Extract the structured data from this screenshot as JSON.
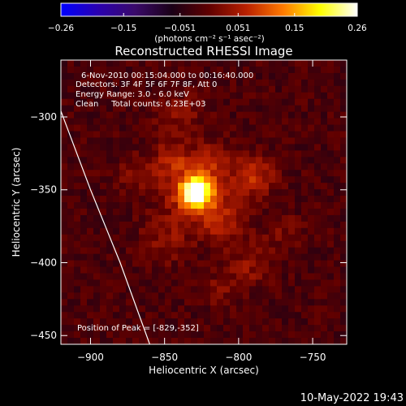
{
  "chart_data": {
    "type": "heatmap",
    "title": "Reconstructed RHESSI Image",
    "xlabel": "Heliocentric X (arcsec)",
    "ylabel": "Heliocentric Y (arcsec)",
    "xlim": [
      -920,
      -727
    ],
    "ylim": [
      -456,
      -261
    ],
    "x_ticks": [
      -900,
      -850,
      -800,
      -750
    ],
    "x_tick_labels": [
      "−900",
      "−850",
      "−800",
      "−750"
    ],
    "y_ticks": [
      -300,
      -350,
      -400,
      -450
    ],
    "y_tick_labels": [
      "−300",
      "−350",
      "−400",
      "−450"
    ],
    "colorbar": {
      "range": [
        -0.26,
        0.26
      ],
      "ticks": [
        -0.26,
        -0.15,
        -0.051,
        0.051,
        0.15,
        0.26
      ],
      "tick_labels": [
        "−0.26",
        "−0.15",
        "−0.051",
        "0.051",
        "0.15",
        "0.26"
      ],
      "label": "(photons cm⁻² s⁻¹ asec⁻²)"
    },
    "info_lines": [
      "6-Nov-2010 00:15:04.000 to 00:16:40.000",
      "Detectors: 3F 4F 5F 6F 7F 8F, Att 0",
      "Energy Range: 3.0 - 6.0 keV",
      "Clean     Total counts: 6.23E+03"
    ],
    "peak_label": "Position of Peak = [-829,-352]",
    "peak": {
      "x": -829,
      "y": -352,
      "value": 0.26
    },
    "sources": [
      {
        "x": -829,
        "y": -352,
        "amp": 0.26,
        "sigma": 7
      },
      {
        "x": -829,
        "y": -352,
        "amp": 0.09,
        "sigma": 16
      },
      {
        "x": -845,
        "y": -330,
        "amp": 0.06,
        "sigma": 9
      },
      {
        "x": -818,
        "y": -330,
        "amp": 0.055,
        "sigma": 9
      },
      {
        "x": -790,
        "y": -340,
        "amp": 0.085,
        "sigma": 10
      },
      {
        "x": -810,
        "y": -372,
        "amp": 0.06,
        "sigma": 11
      },
      {
        "x": -850,
        "y": -385,
        "amp": 0.045,
        "sigma": 11
      },
      {
        "x": -792,
        "y": -402,
        "amp": 0.05,
        "sigma": 10
      },
      {
        "x": -770,
        "y": -380,
        "amp": 0.035,
        "sigma": 9
      },
      {
        "x": -840,
        "y": -300,
        "amp": 0.04,
        "sigma": 12
      },
      {
        "x": -870,
        "y": -340,
        "amp": 0.035,
        "sigma": 10
      },
      {
        "x": -812,
        "y": -418,
        "amp": 0.035,
        "sigma": 9
      }
    ],
    "limb_curve": [
      [
        -920,
        -296
      ],
      [
        -900,
        -350
      ],
      [
        -880,
        -400
      ],
      [
        -860,
        -456
      ]
    ],
    "limb_color": "#ffffff",
    "background_level": 0.0,
    "colormap": [
      "#0000ff",
      "#2a00b0",
      "#3a0a6a",
      "#1a0016",
      "#600000",
      "#b82000",
      "#ff7a00",
      "#ffff00",
      "#ffffff"
    ]
  },
  "footer_date": "10-May-2022 19:43"
}
